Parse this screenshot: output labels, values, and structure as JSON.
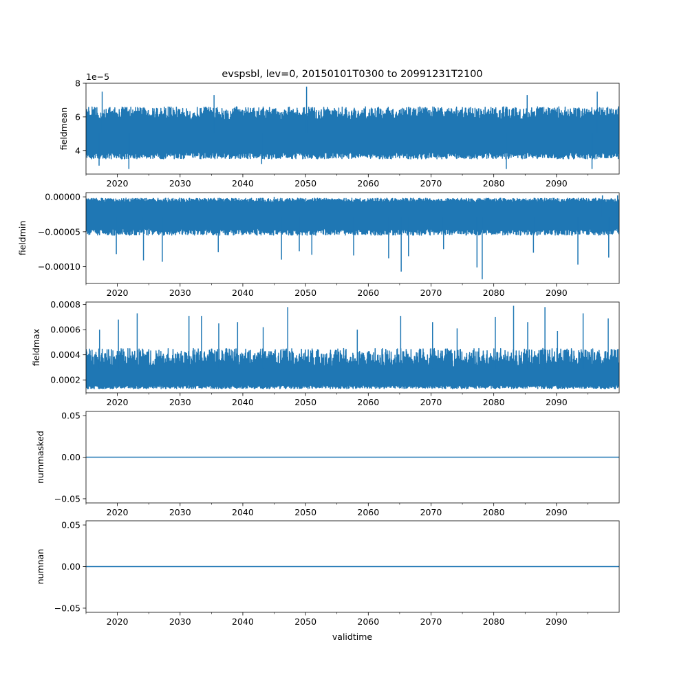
{
  "title": "evspsbl, lev=0, 20150101T0300 to 20991231T2100",
  "xlabel": "validtime",
  "x_ticks": [
    "2020",
    "2030",
    "2040",
    "2050",
    "2060",
    "2070",
    "2080",
    "2090"
  ],
  "colors": {
    "line": "#1f77b4",
    "axes": "#000000",
    "background": "#ffffff"
  },
  "chart_data": [
    {
      "type": "line",
      "ylabel": "fieldmean",
      "offset_text": "1e−5",
      "x_range": [
        "2015-01-01",
        "2099-12-31"
      ],
      "ylim": [
        2.6e-05,
        8e-05
      ],
      "yticks": [
        4e-05,
        6e-05,
        8e-05
      ],
      "ytick_labels": [
        "4",
        "6",
        "8"
      ],
      "band": {
        "low": [
          3.5e-05,
          3.9e-05
        ],
        "high": [
          5.8e-05,
          6.6e-05
        ]
      },
      "spikes": [
        {
          "x": "2017-08-01",
          "y": 7.5e-05
        },
        {
          "x": "2050-03-01",
          "y": 7.8e-05
        },
        {
          "x": "2096-07-01",
          "y": 7.5e-05
        },
        {
          "x": "2035-06-01",
          "y": 7.3e-05
        },
        {
          "x": "2085-05-01",
          "y": 7.3e-05
        }
      ],
      "dips": [
        {
          "x": "2021-11-01",
          "y": 2.9e-05
        },
        {
          "x": "2082-01-01",
          "y": 2.9e-05
        },
        {
          "x": "2095-09-01",
          "y": 2.9e-05
        },
        {
          "x": "2017-02-01",
          "y": 3.1e-05
        },
        {
          "x": "2043-01-01",
          "y": 3.2e-05
        }
      ]
    },
    {
      "type": "line",
      "ylabel": "fieldmin",
      "offset_text": "",
      "x_range": [
        "2015-01-01",
        "2099-12-31"
      ],
      "ylim": [
        -0.000124,
        6e-06
      ],
      "yticks": [
        0.0,
        -5e-05,
        -0.0001
      ],
      "ytick_labels": [
        "0.00000",
        "−0.00005",
        "−0.00010"
      ],
      "band": {
        "low": [
          -5.5e-05,
          -4.5e-05
        ],
        "high": [
          -8e-06,
          -2e-06
        ]
      },
      "spikes": [
        {
          "x": "2099-10-01",
          "y": 2e-06
        },
        {
          "x": "2097-05-01",
          "y": 2e-06
        },
        {
          "x": "2045-01-01",
          "y": 0.0
        }
      ],
      "dips": [
        {
          "x": "2078-03-01",
          "y": -0.000118
        },
        {
          "x": "2065-04-01",
          "y": -0.000107
        },
        {
          "x": "2077-05-01",
          "y": -0.000101
        },
        {
          "x": "2093-06-01",
          "y": -9.7e-05
        },
        {
          "x": "2027-03-01",
          "y": -9.3e-05
        },
        {
          "x": "2024-03-01",
          "y": -9.1e-05
        },
        {
          "x": "2046-03-01",
          "y": -9e-05
        },
        {
          "x": "2063-04-01",
          "y": -8.8e-05
        },
        {
          "x": "2098-05-01",
          "y": -8.7e-05
        },
        {
          "x": "2019-11-01",
          "y": -8.2e-05
        },
        {
          "x": "2051-01-01",
          "y": -8.3e-05
        },
        {
          "x": "2057-09-01",
          "y": -8.4e-05
        },
        {
          "x": "2066-06-01",
          "y": -8.5e-05
        },
        {
          "x": "2086-05-01",
          "y": -8e-05
        },
        {
          "x": "2036-02-01",
          "y": -7.9e-05
        },
        {
          "x": "2049-01-01",
          "y": -7.8e-05
        },
        {
          "x": "2072-01-01",
          "y": -7.5e-05
        }
      ]
    },
    {
      "type": "line",
      "ylabel": "fieldmax",
      "offset_text": "",
      "x_range": [
        "2015-01-01",
        "2099-12-31"
      ],
      "ylim": [
        9.7e-05,
        0.00082
      ],
      "yticks": [
        0.0002,
        0.0004,
        0.0006,
        0.0008
      ],
      "ytick_labels": [
        "0.0002",
        "0.0004",
        "0.0006",
        "0.0008"
      ],
      "band": {
        "low": [
          0.00013,
          0.00016
        ],
        "high": [
          0.0003,
          0.00045
        ]
      },
      "spikes": [
        {
          "x": "2047-03-01",
          "y": 0.00078
        },
        {
          "x": "2083-03-01",
          "y": 0.00079
        },
        {
          "x": "2088-03-01",
          "y": 0.00078
        },
        {
          "x": "2023-03-01",
          "y": 0.00073
        },
        {
          "x": "2094-04-01",
          "y": 0.00073
        },
        {
          "x": "2031-06-01",
          "y": 0.00071
        },
        {
          "x": "2033-06-01",
          "y": 0.00071
        },
        {
          "x": "2065-03-01",
          "y": 0.00071
        },
        {
          "x": "2080-04-01",
          "y": 0.0007
        },
        {
          "x": "2098-04-01",
          "y": 0.00069
        },
        {
          "x": "2020-03-01",
          "y": 0.00068
        },
        {
          "x": "2036-03-01",
          "y": 0.00065
        },
        {
          "x": "2043-04-01",
          "y": 0.00062
        },
        {
          "x": "2074-03-01",
          "y": 0.00061
        },
        {
          "x": "2085-06-01",
          "y": 0.00066
        },
        {
          "x": "2017-03-01",
          "y": 0.0006
        },
        {
          "x": "2058-04-01",
          "y": 0.0006
        },
        {
          "x": "2090-03-01",
          "y": 0.00059
        },
        {
          "x": "2039-03-01",
          "y": 0.00066
        },
        {
          "x": "2070-04-01",
          "y": 0.00066
        }
      ],
      "dips": []
    },
    {
      "type": "line",
      "ylabel": "nummasked",
      "offset_text": "",
      "x_range": [
        "2015-01-01",
        "2099-12-31"
      ],
      "ylim": [
        -0.055,
        0.055
      ],
      "yticks": [
        0.05,
        0.0,
        -0.05
      ],
      "ytick_labels": [
        "0.05",
        "0.00",
        "−0.05"
      ],
      "constant": 0.0
    },
    {
      "type": "line",
      "ylabel": "numnan",
      "offset_text": "",
      "x_range": [
        "2015-01-01",
        "2099-12-31"
      ],
      "ylim": [
        -0.055,
        0.055
      ],
      "yticks": [
        0.05,
        0.0,
        -0.05
      ],
      "ytick_labels": [
        "0.05",
        "0.00",
        "−0.05"
      ],
      "constant": 0.0
    }
  ]
}
